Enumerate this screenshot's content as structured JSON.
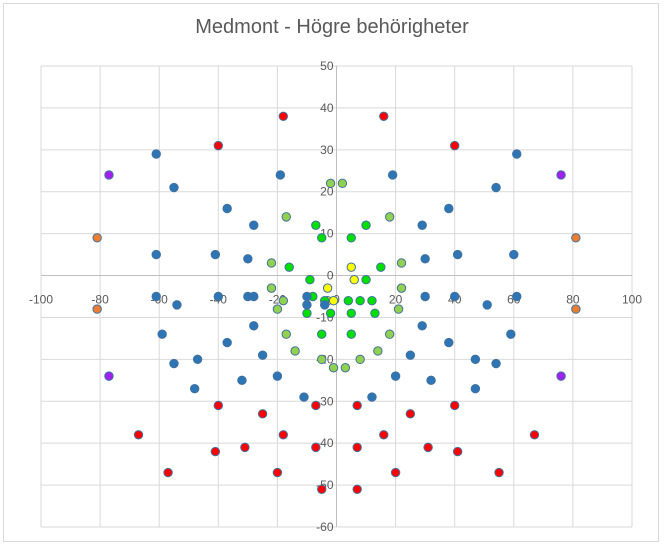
{
  "chart_data": {
    "type": "scatter",
    "title": "Medmont - Högre behörigheter",
    "xlabel": "",
    "ylabel": "",
    "xlim": [
      -100,
      100
    ],
    "ylim": [
      -60,
      50
    ],
    "x_ticks": [
      -100,
      -80,
      -60,
      -40,
      -20,
      0,
      20,
      40,
      60,
      80,
      100
    ],
    "x_tick_labels": [
      "-100",
      "-80",
      "-60",
      "-40",
      "-20",
      "0",
      "20",
      "40",
      "60",
      "80",
      "100"
    ],
    "y_ticks": [
      -60,
      -50,
      -40,
      -30,
      -20,
      -10,
      0,
      10,
      20,
      30,
      40,
      50
    ],
    "y_tick_labels": [
      "-60",
      "-50",
      "-40",
      "-30",
      "-20",
      "-10",
      "0",
      "10",
      "20",
      "30",
      "40",
      "50"
    ],
    "gridlines": true,
    "legend": "none",
    "series": [
      {
        "color": "#ffff00",
        "points": [
          [
            -3,
            -6
          ],
          [
            -1,
            -6
          ],
          [
            -3,
            -3
          ],
          [
            5,
            2
          ],
          [
            6,
            -1
          ]
        ]
      },
      {
        "color": "#00e000",
        "points": [
          [
            -7,
            12
          ],
          [
            -5,
            9
          ],
          [
            5,
            9
          ],
          [
            10,
            12
          ],
          [
            -16,
            2
          ],
          [
            -9,
            -1
          ],
          [
            10,
            -1
          ],
          [
            15,
            2
          ],
          [
            -8,
            -5
          ],
          [
            -4,
            -6
          ],
          [
            4,
            -6
          ],
          [
            8,
            -6
          ],
          [
            12,
            -6
          ],
          [
            -10,
            -9
          ],
          [
            -2,
            -9
          ],
          [
            5,
            -9
          ],
          [
            13,
            -9
          ],
          [
            -5,
            -14
          ],
          [
            5,
            -14
          ]
        ]
      },
      {
        "color": "#92d050",
        "points": [
          [
            -2,
            22
          ],
          [
            2,
            22
          ],
          [
            -17,
            14
          ],
          [
            18,
            14
          ],
          [
            -22,
            3
          ],
          [
            22,
            3
          ],
          [
            -22,
            -3
          ],
          [
            -20,
            -8
          ],
          [
            21,
            -8
          ],
          [
            -17,
            -14
          ],
          [
            18,
            -14
          ],
          [
            -14,
            -18
          ],
          [
            14,
            -18
          ],
          [
            -5,
            -20
          ],
          [
            8,
            -20
          ],
          [
            -1,
            -22
          ],
          [
            3,
            -22
          ],
          [
            -18,
            -6
          ],
          [
            22,
            -3
          ]
        ]
      },
      {
        "color": "#2e75b6",
        "points": [
          [
            -61,
            29
          ],
          [
            61,
            29
          ],
          [
            -55,
            21
          ],
          [
            54,
            21
          ],
          [
            -19,
            24
          ],
          [
            19,
            24
          ],
          [
            -37,
            16
          ],
          [
            38,
            16
          ],
          [
            -28,
            12
          ],
          [
            29,
            12
          ],
          [
            -61,
            5
          ],
          [
            -41,
            5
          ],
          [
            -30,
            4
          ],
          [
            30,
            4
          ],
          [
            41,
            5
          ],
          [
            60,
            5
          ],
          [
            -61,
            -5
          ],
          [
            -30,
            -5
          ],
          [
            -10,
            -5
          ],
          [
            30,
            -5
          ],
          [
            40,
            -5
          ],
          [
            61,
            -5
          ],
          [
            -54,
            -7
          ],
          [
            51,
            -7
          ],
          [
            -59,
            -14
          ],
          [
            -37,
            -16
          ],
          [
            38,
            -16
          ],
          [
            -28,
            -12
          ],
          [
            29,
            -12
          ],
          [
            59,
            -14
          ],
          [
            -47,
            -20
          ],
          [
            47,
            -20
          ],
          [
            -55,
            -21
          ],
          [
            54,
            -21
          ],
          [
            -25,
            -19
          ],
          [
            25,
            -19
          ],
          [
            -20,
            -24
          ],
          [
            20,
            -24
          ],
          [
            -32,
            -25
          ],
          [
            32,
            -25
          ],
          [
            -48,
            -27
          ],
          [
            47,
            -27
          ],
          [
            -11,
            -29
          ],
          [
            12,
            -29
          ],
          [
            -40,
            -5
          ],
          [
            -4,
            -7
          ],
          [
            -28,
            -5
          ],
          [
            -10,
            -7
          ]
        ]
      },
      {
        "color": "#ed7d31",
        "points": [
          [
            -81,
            9
          ],
          [
            81,
            9
          ],
          [
            -81,
            -8
          ],
          [
            81,
            -8
          ]
        ]
      },
      {
        "color": "#a020f0",
        "points": [
          [
            -77,
            24
          ],
          [
            76,
            24
          ],
          [
            -77,
            -24
          ],
          [
            76,
            -24
          ]
        ]
      },
      {
        "color": "#ff0000",
        "points": [
          [
            -18,
            38
          ],
          [
            16,
            38
          ],
          [
            -40,
            31
          ],
          [
            40,
            31
          ],
          [
            -40,
            -31
          ],
          [
            40,
            -31
          ],
          [
            -25,
            -33
          ],
          [
            25,
            -33
          ],
          [
            -7,
            -31
          ],
          [
            7,
            -31
          ],
          [
            -67,
            -38
          ],
          [
            67,
            -38
          ],
          [
            -18,
            -38
          ],
          [
            16,
            -38
          ],
          [
            -31,
            -41
          ],
          [
            31,
            -41
          ],
          [
            -41,
            -42
          ],
          [
            41,
            -42
          ],
          [
            -7,
            -41
          ],
          [
            7,
            -41
          ],
          [
            -57,
            -47
          ],
          [
            55,
            -47
          ],
          [
            -20,
            -47
          ],
          [
            20,
            -47
          ],
          [
            -5,
            -51
          ],
          [
            7,
            -51
          ]
        ]
      }
    ]
  }
}
